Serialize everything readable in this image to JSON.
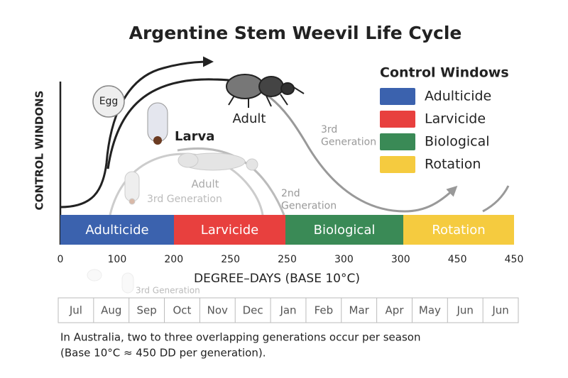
{
  "title": "Argentine Stem Weevil Life Cycle",
  "y_axis_label": "CONTROL WINDONS",
  "x_axis_label": "DEGREE–DAYS (BASE 10°C)",
  "legend": {
    "title": "Control Windows",
    "items": [
      {
        "name": "Adulticide",
        "color": "#3b62ae"
      },
      {
        "name": "Larvicide",
        "color": "#e8403e"
      },
      {
        "name": "Biological",
        "color": "#3a8a56"
      },
      {
        "name": "Rotation",
        "color": "#f5cb3f"
      }
    ]
  },
  "bands": [
    {
      "label": "Adulticide",
      "color": "#3b62ae"
    },
    {
      "label": "Larvicide",
      "color": "#e8403e"
    },
    {
      "label": "Biological",
      "color": "#3a8a56"
    },
    {
      "label": "Rotation",
      "color": "#f5cb3f"
    }
  ],
  "axis_ticks": [
    "0",
    "100",
    "200",
    "250",
    "250",
    "300",
    "300",
    "450",
    "450"
  ],
  "stage_labels": {
    "egg": "Egg",
    "larva": "Larva",
    "adult": "Adult",
    "third_generation": "3rd Generation",
    "ghost_adult": "Adult",
    "ghost_third_generation": "3rd Generation",
    "second_generation": "2nd Generation",
    "faded_third_generation": "3rd Generation"
  },
  "months": [
    "Jul",
    "Aug",
    "Sep",
    "Oct",
    "Nov",
    "Dec",
    "Jan",
    "Feb",
    "Mar",
    "Apr",
    "May",
    "Jun",
    "Jun"
  ],
  "footnote": [
    "In Australia, two to three overlapping generations occur per season",
    "(Base 10°C ≈ 450 DD per generation)."
  ]
}
